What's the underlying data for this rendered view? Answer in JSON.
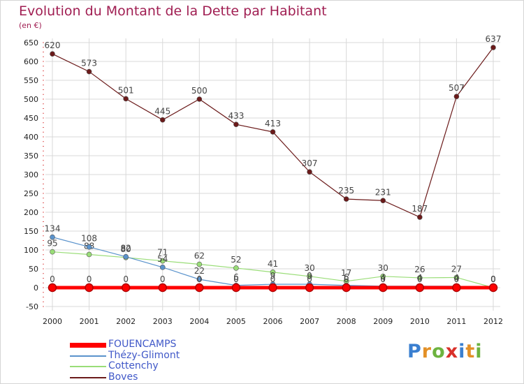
{
  "header": {
    "title": "Evolution du Montant de la Dette par Habitant",
    "subtitle": "(en €)"
  },
  "colors": {
    "title": "#a01e52",
    "legend_text": "#4058c8",
    "grid": "#d9d9d9"
  },
  "logo": {
    "text": "Proxiti",
    "letter_colors": [
      "#3a7fd0",
      "#e39027",
      "#6db33f",
      "#d9302a",
      "#3a7fd0",
      "#e39027",
      "#6db33f"
    ]
  },
  "chart_data": {
    "type": "line",
    "title": "Evolution du Montant de la Dette par Habitant",
    "subtitle": "(en €)",
    "x": [
      "2000",
      "2001",
      "2002",
      "2003",
      "2004",
      "2005",
      "2006",
      "2007",
      "2008",
      "2009",
      "2010",
      "2011",
      "2012"
    ],
    "ylim": [
      -50,
      650
    ],
    "yticks": [
      -50,
      0,
      50,
      100,
      150,
      200,
      250,
      300,
      350,
      400,
      450,
      500,
      550,
      600,
      650
    ],
    "grid": true,
    "legend_position": "bottom-left",
    "series": [
      {
        "name": "FOUENCAMPS",
        "color": "#ff0000",
        "values": [
          0,
          0,
          0,
          0,
          0,
          0,
          0,
          0,
          0,
          0,
          0,
          0,
          0
        ]
      },
      {
        "name": "Thézy-Glimont",
        "color": "#5a93cc",
        "values": [
          134,
          108,
          82,
          54,
          22,
          6,
          9,
          9,
          6,
          4,
          4,
          4,
          0
        ]
      },
      {
        "name": "Cottenchy",
        "color": "#99dd77",
        "values": [
          95,
          88,
          80,
          71,
          62,
          52,
          41,
          30,
          17,
          30,
          26,
          27,
          0
        ]
      },
      {
        "name": "Boves",
        "color": "#6b1a1a",
        "values": [
          620,
          573,
          501,
          445,
          500,
          433,
          413,
          307,
          235,
          231,
          187,
          507,
          637
        ]
      }
    ]
  }
}
